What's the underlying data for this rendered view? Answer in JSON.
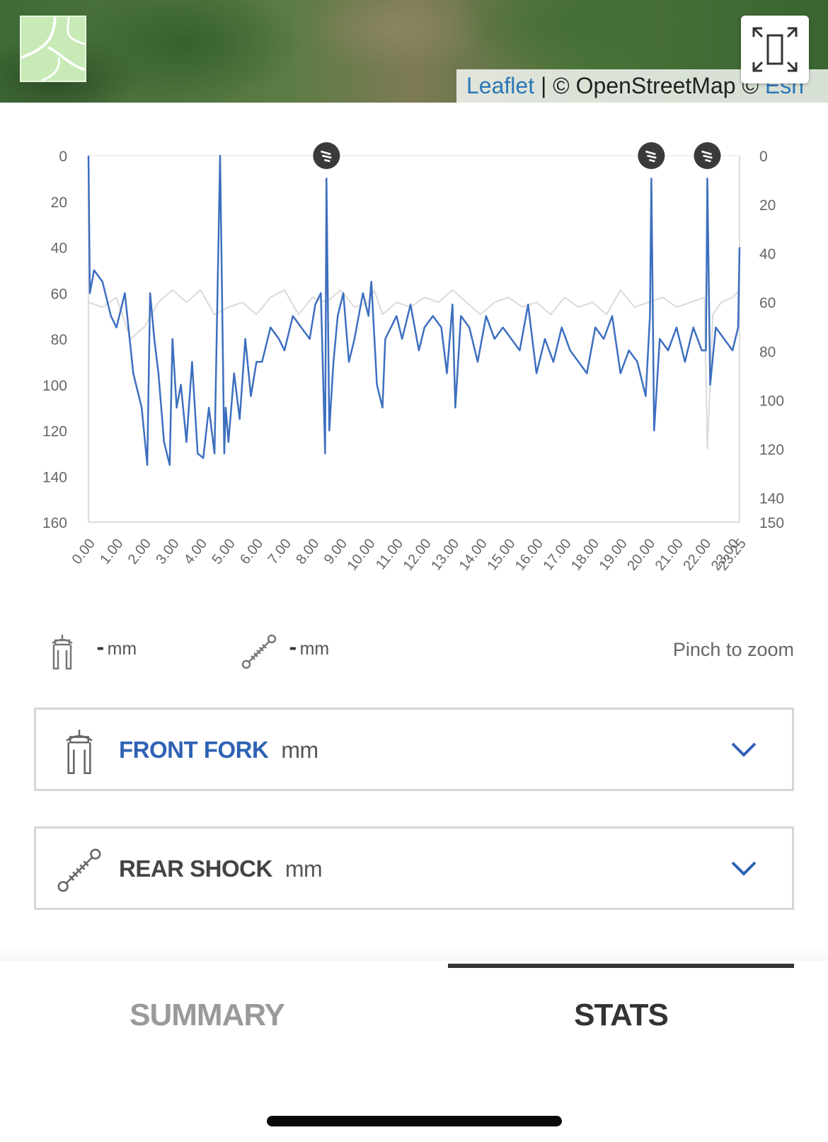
{
  "map": {
    "attribution_leaflet": "Leaflet",
    "attribution_separator": " | ",
    "attribution_osm": "© OpenStreetMap © ",
    "attribution_esri": "Esri"
  },
  "chart_data": {
    "type": "line",
    "x_tick_labels": [
      "0.00",
      "1.00",
      "2.00",
      "3.00",
      "4.00",
      "5.00",
      "6.00",
      "7.00",
      "8.00",
      "9.00",
      "10.00",
      "11.00",
      "12.00",
      "13.00",
      "14.00",
      "15.00",
      "16.00",
      "17.00",
      "18.00",
      "19.00",
      "20.00",
      "21.00",
      "22.00",
      "23.00",
      "23.25"
    ],
    "xlim": [
      0,
      23.25
    ],
    "left_axis": {
      "ticks": [
        0,
        20,
        40,
        60,
        80,
        100,
        120,
        140,
        160
      ],
      "ylim": [
        0,
        160
      ],
      "inverted": true
    },
    "right_axis": {
      "ticks": [
        0,
        20,
        40,
        60,
        80,
        100,
        120,
        140,
        150
      ],
      "ylim": [
        0,
        150
      ],
      "inverted": true
    },
    "grid": false,
    "markers_x": [
      8.5,
      20.1,
      22.1
    ],
    "series": [
      {
        "color": "#3d6fbf",
        "axis": "left",
        "x": [
          0,
          0.05,
          0.2,
          0.5,
          0.8,
          1.0,
          1.3,
          1.6,
          1.9,
          2.1,
          2.2,
          2.35,
          2.5,
          2.7,
          2.9,
          3.0,
          3.15,
          3.3,
          3.5,
          3.7,
          3.9,
          4.1,
          4.3,
          4.5,
          4.7,
          4.85,
          4.9,
          5.0,
          5.2,
          5.4,
          5.6,
          5.8,
          6.0,
          6.2,
          6.5,
          6.8,
          7.0,
          7.3,
          7.6,
          7.9,
          8.1,
          8.3,
          8.45,
          8.5,
          8.6,
          8.75,
          8.9,
          9.1,
          9.3,
          9.5,
          9.8,
          10.0,
          10.1,
          10.3,
          10.5,
          10.6,
          10.8,
          11.0,
          11.2,
          11.5,
          11.8,
          12.0,
          12.3,
          12.6,
          12.8,
          13.0,
          13.1,
          13.3,
          13.6,
          13.9,
          14.2,
          14.5,
          14.8,
          15.1,
          15.4,
          15.7,
          16.0,
          16.3,
          16.6,
          16.9,
          17.2,
          17.5,
          17.8,
          18.1,
          18.4,
          18.7,
          19.0,
          19.3,
          19.6,
          19.9,
          20.05,
          20.1,
          20.2,
          20.4,
          20.7,
          21.0,
          21.3,
          21.6,
          21.9,
          22.05,
          22.1,
          22.2,
          22.4,
          22.7,
          23.0,
          23.2,
          23.25
        ],
        "y": [
          0,
          60,
          50,
          55,
          70,
          75,
          60,
          95,
          110,
          135,
          60,
          80,
          95,
          125,
          135,
          80,
          110,
          100,
          125,
          90,
          130,
          132,
          110,
          130,
          0,
          130,
          110,
          125,
          95,
          115,
          80,
          105,
          90,
          90,
          75,
          80,
          85,
          70,
          75,
          80,
          65,
          60,
          130,
          10,
          120,
          90,
          70,
          60,
          90,
          80,
          60,
          70,
          55,
          100,
          110,
          80,
          75,
          70,
          80,
          65,
          85,
          75,
          70,
          75,
          95,
          65,
          110,
          70,
          75,
          90,
          70,
          80,
          75,
          80,
          85,
          65,
          95,
          80,
          90,
          75,
          85,
          90,
          95,
          75,
          80,
          70,
          95,
          85,
          90,
          105,
          70,
          10,
          120,
          80,
          85,
          75,
          90,
          75,
          85,
          85,
          10,
          100,
          75,
          80,
          85,
          75,
          40
        ]
      },
      {
        "color": "#dadada",
        "axis": "right",
        "x": [
          0,
          0.5,
          1.0,
          1.5,
          2.0,
          2.5,
          3.0,
          3.5,
          4.0,
          4.5,
          5.0,
          5.5,
          6.0,
          6.5,
          7.0,
          7.5,
          8.0,
          8.5,
          9.0,
          9.5,
          10.0,
          10.2,
          10.5,
          11.0,
          11.5,
          12.0,
          12.5,
          13.0,
          13.5,
          14.0,
          14.5,
          15.0,
          15.5,
          16.0,
          16.5,
          17.0,
          17.5,
          18.0,
          18.5,
          19.0,
          19.5,
          20.0,
          20.5,
          21.0,
          21.5,
          22.0,
          22.1,
          22.3,
          22.6,
          23.0,
          23.25
        ],
        "y": [
          60,
          62,
          58,
          75,
          70,
          60,
          55,
          60,
          55,
          65,
          62,
          60,
          65,
          58,
          55,
          65,
          58,
          60,
          55,
          62,
          60,
          55,
          65,
          60,
          62,
          58,
          60,
          55,
          60,
          65,
          60,
          58,
          62,
          60,
          65,
          58,
          62,
          60,
          65,
          55,
          62,
          60,
          58,
          62,
          60,
          58,
          120,
          65,
          60,
          58,
          55
        ]
      }
    ]
  },
  "readouts": {
    "fork_value": "-",
    "fork_unit": "mm",
    "shock_value": "-",
    "shock_unit": "mm",
    "pinch_hint": "Pinch to zoom"
  },
  "panels": {
    "front": {
      "title": "FRONT FORK",
      "unit": "mm",
      "color": "#2f62b5"
    },
    "rear": {
      "title": "REAR SHOCK",
      "unit": "mm",
      "color": "#444444"
    }
  },
  "tabs": {
    "summary": "SUMMARY",
    "stats": "STATS",
    "active": "stats",
    "active_color": "#333333",
    "inactive_color": "#9a9a9a"
  }
}
